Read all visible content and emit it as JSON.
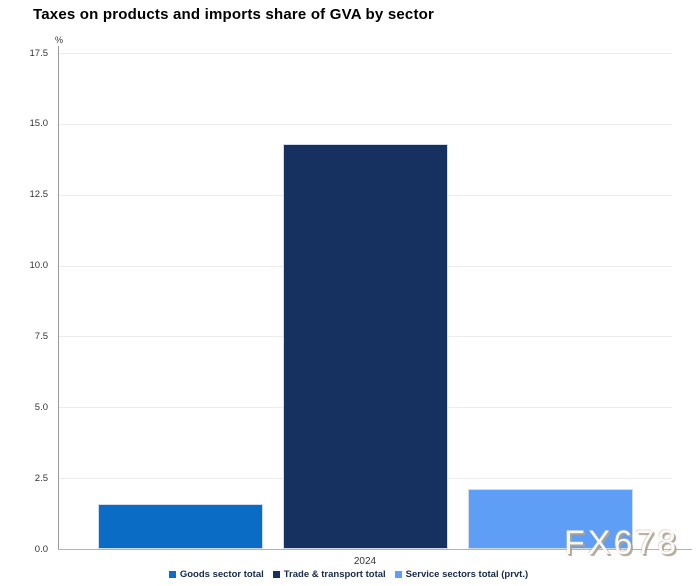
{
  "title": "Taxes on products and imports share of GVA by sector",
  "watermark": "FX678",
  "chart_data": {
    "type": "bar",
    "categories": [
      "2024"
    ],
    "series": [
      {
        "name": "Goods sector total",
        "values": [
          1.6
        ],
        "color": "#0a6cc4"
      },
      {
        "name": "Trade & transport total",
        "values": [
          14.3
        ],
        "color": "#16305f"
      },
      {
        "name": "Service sectors total (prvt.)",
        "values": [
          2.1
        ],
        "color": "#5f9ef7"
      }
    ],
    "xlabel": "",
    "ylabel": "%",
    "ylim": [
      0,
      17.5
    ],
    "yticks": [
      "0.0",
      "2.5",
      "5.0",
      "7.5",
      "10.0",
      "12.5",
      "15.0",
      "17.5"
    ],
    "grid": true,
    "legend_position": "bottom"
  }
}
